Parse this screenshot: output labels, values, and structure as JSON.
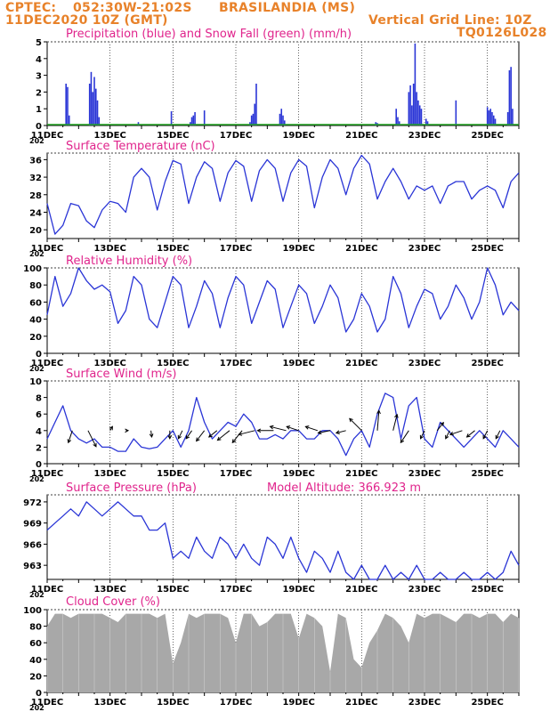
{
  "header": {
    "source": "CPTEC:",
    "coords": "052:30W-21:02S",
    "location": "BRASILANDIA (MS)",
    "run_time": "11DEC2020 10Z (GMT)",
    "grid_note": "Vertical Grid Line: 10Z",
    "code": "TQ0126L028"
  },
  "colors": {
    "header": "#e8822a",
    "title": "#e0248c",
    "line": "#2a35d6",
    "precip": "#2a35d6",
    "snow": "#21a321",
    "cloud": "#a8a8a8",
    "wind_arrow": "#000000"
  },
  "x_axis": {
    "tick_labels": [
      "11DEC",
      "13DEC",
      "15DEC",
      "17DEC",
      "19DEC",
      "21DEC",
      "23DEC",
      "25DEC"
    ],
    "tick_days": [
      0,
      2,
      4,
      6,
      8,
      10,
      12,
      14
    ],
    "range_days": [
      0,
      15
    ],
    "under_label": "202"
  },
  "chart_data": [
    {
      "type": "bar",
      "title": "Precipitation (blue) and Snow Fall (green) (mm/h)",
      "ylim": [
        0,
        5
      ],
      "yticks": [
        0,
        1,
        2,
        3,
        4,
        5
      ],
      "series": [
        {
          "name": "Precipitation",
          "x": [
            0.6,
            0.65,
            0.7,
            1.35,
            1.4,
            1.45,
            1.5,
            1.55,
            1.6,
            1.65,
            2.9,
            3.95,
            4.55,
            4.6,
            4.65,
            4.7,
            5.0,
            6.45,
            6.5,
            6.55,
            6.6,
            6.65,
            7.4,
            7.45,
            7.5,
            7.55,
            10.45,
            10.5,
            11.1,
            11.15,
            11.2,
            11.5,
            11.55,
            11.6,
            11.65,
            11.7,
            11.75,
            11.8,
            11.85,
            11.9,
            12.05,
            12.1,
            13.0,
            14.0,
            14.05,
            14.1,
            14.15,
            14.2,
            14.25,
            14.65,
            14.7,
            14.75,
            14.8
          ],
          "values": [
            2.5,
            2.3,
            0.6,
            2.5,
            3.2,
            2.0,
            2.9,
            2.2,
            1.5,
            0.5,
            0.2,
            0.85,
            0.2,
            0.5,
            0.6,
            0.8,
            0.9,
            0.2,
            0.6,
            0.7,
            1.3,
            2.5,
            0.7,
            1.0,
            0.6,
            0.3,
            0.2,
            0.15,
            1.0,
            0.5,
            0.25,
            2.0,
            2.4,
            1.2,
            2.5,
            4.9,
            2.0,
            1.5,
            1.2,
            1.0,
            0.4,
            0.25,
            1.5,
            1.1,
            0.9,
            1.0,
            0.8,
            0.6,
            0.4,
            0.8,
            3.3,
            3.5,
            1.0
          ]
        },
        {
          "name": "Snow Fall",
          "values": [
            0
          ]
        }
      ]
    },
    {
      "type": "line",
      "title": "Surface Temperature (nC)",
      "ylim": [
        18,
        37.5
      ],
      "yticks": [
        20,
        24,
        28,
        32,
        36
      ],
      "x": [
        0,
        0.25,
        0.5,
        0.75,
        1,
        1.25,
        1.5,
        1.75,
        2,
        2.25,
        2.5,
        2.75,
        3,
        3.25,
        3.5,
        3.75,
        4,
        4.25,
        4.5,
        4.75,
        5,
        5.25,
        5.5,
        5.75,
        6,
        6.25,
        6.5,
        6.75,
        7,
        7.25,
        7.5,
        7.75,
        8,
        8.25,
        8.5,
        8.75,
        9,
        9.25,
        9.5,
        9.75,
        10,
        10.25,
        10.5,
        10.75,
        11,
        11.25,
        11.5,
        11.75,
        12,
        12.25,
        12.5,
        12.75,
        13,
        13.25,
        13.5,
        13.75,
        14,
        14.25,
        14.5,
        14.75,
        15
      ],
      "values": [
        26,
        19,
        21,
        26,
        25.5,
        22,
        20.5,
        24.5,
        26.5,
        26,
        24,
        32,
        34,
        32,
        24.5,
        31,
        35.8,
        35,
        26,
        32,
        35.5,
        34,
        26.5,
        33,
        35.8,
        34.5,
        26.5,
        33.5,
        36,
        34,
        26.5,
        33,
        36,
        34.5,
        25,
        32,
        36,
        34,
        28,
        34,
        37,
        35,
        27,
        31,
        34,
        31,
        27,
        30,
        29,
        30,
        26,
        30,
        31,
        31,
        27,
        29,
        30,
        29,
        25,
        31,
        33
      ]
    },
    {
      "type": "line",
      "title": "Relative Humidity (%)",
      "ylim": [
        0,
        100
      ],
      "yticks": [
        0,
        20,
        40,
        60,
        80,
        100
      ],
      "x": [
        0,
        0.25,
        0.5,
        0.75,
        1,
        1.25,
        1.5,
        1.75,
        2,
        2.25,
        2.5,
        2.75,
        3,
        3.25,
        3.5,
        3.75,
        4,
        4.25,
        4.5,
        4.75,
        5,
        5.25,
        5.5,
        5.75,
        6,
        6.25,
        6.5,
        6.75,
        7,
        7.25,
        7.5,
        7.75,
        8,
        8.25,
        8.5,
        8.75,
        9,
        9.25,
        9.5,
        9.75,
        10,
        10.25,
        10.5,
        10.75,
        11,
        11.25,
        11.5,
        11.75,
        12,
        12.25,
        12.5,
        12.75,
        13,
        13.25,
        13.5,
        13.75,
        14,
        14.25,
        14.5,
        14.75,
        15
      ],
      "values": [
        45,
        90,
        55,
        70,
        100,
        85,
        75,
        80,
        72,
        35,
        50,
        90,
        80,
        40,
        30,
        60,
        90,
        80,
        30,
        55,
        85,
        70,
        30,
        65,
        90,
        80,
        35,
        60,
        85,
        75,
        30,
        55,
        80,
        70,
        35,
        55,
        80,
        65,
        25,
        40,
        70,
        55,
        25,
        40,
        90,
        70,
        30,
        55,
        75,
        70,
        40,
        55,
        80,
        65,
        40,
        60,
        100,
        80,
        45,
        60,
        50
      ]
    },
    {
      "type": "line",
      "title": "Surface Wind (m/s)",
      "ylim": [
        0,
        10
      ],
      "yticks": [
        0,
        2,
        4,
        6,
        8,
        10
      ],
      "x": [
        0,
        0.25,
        0.5,
        0.75,
        1,
        1.25,
        1.5,
        1.75,
        2,
        2.25,
        2.5,
        2.75,
        3,
        3.25,
        3.5,
        3.75,
        4,
        4.25,
        4.5,
        4.75,
        5,
        5.25,
        5.5,
        5.75,
        6,
        6.25,
        6.5,
        6.75,
        7,
        7.25,
        7.5,
        7.75,
        8,
        8.25,
        8.5,
        8.75,
        9,
        9.25,
        9.5,
        9.75,
        10,
        10.25,
        10.5,
        10.75,
        11,
        11.25,
        11.5,
        11.75,
        12,
        12.25,
        12.5,
        12.75,
        13,
        13.25,
        13.5,
        13.75,
        14,
        14.25,
        14.5,
        14.75,
        15
      ],
      "values": [
        3,
        5,
        7,
        4,
        3,
        2.5,
        3,
        2,
        2,
        1.5,
        1.5,
        3,
        2,
        1.8,
        2,
        3,
        4,
        2,
        4,
        8,
        5,
        3,
        4,
        5,
        4.5,
        6,
        5,
        3,
        3,
        3.5,
        3,
        4,
        4,
        3,
        3,
        4,
        4,
        3,
        1,
        3,
        4,
        2,
        6,
        8.5,
        8,
        3,
        7,
        8,
        3,
        2,
        5,
        4,
        3,
        2,
        3,
        4,
        3,
        2,
        4,
        3,
        2
      ],
      "arrows": {
        "x": [
          0.8,
          1.3,
          2.0,
          2.5,
          3.3,
          3.9,
          4.3,
          4.6,
          5.0,
          5.4,
          5.8,
          6.2,
          6.6,
          7.2,
          7.6,
          8.0,
          8.6,
          9.0,
          9.5,
          10.0,
          10.5,
          11.0,
          11.5,
          12.0,
          12.4,
          12.8,
          13.2,
          13.6,
          14.0,
          14.4
        ],
        "u": [
          -0.5,
          1.0,
          0.3,
          0.3,
          0.1,
          0.0,
          -0.5,
          -0.7,
          -1.0,
          -1.0,
          -1.5,
          -1.2,
          -2.0,
          -2.0,
          -2.0,
          -1.5,
          -1.5,
          -1.5,
          -1.2,
          -1.5,
          0.2,
          0.5,
          -1.0,
          -0.5,
          0.8,
          -0.5,
          -1.5,
          -1.0,
          -0.5,
          -0.5
        ],
        "v": [
          1.5,
          2.0,
          -0.5,
          0.0,
          0.8,
          1.0,
          1.0,
          1.0,
          1.3,
          0.8,
          1.2,
          1.5,
          0.5,
          0.0,
          -0.5,
          -0.5,
          -0.5,
          0.3,
          0.3,
          -1.5,
          -2.5,
          -2.0,
          1.5,
          1.0,
          -1.0,
          1.0,
          0.5,
          0.8,
          1.0,
          1.0
        ]
      }
    },
    {
      "type": "line",
      "title": "Surface Pressure (hPa)",
      "annotation": "Model Altitude: 366.923 m",
      "ylim": [
        961,
        973
      ],
      "yticks": [
        963,
        966,
        969,
        972
      ],
      "x": [
        0,
        0.25,
        0.5,
        0.75,
        1,
        1.25,
        1.5,
        1.75,
        2,
        2.25,
        2.5,
        2.75,
        3,
        3.25,
        3.5,
        3.75,
        4,
        4.25,
        4.5,
        4.75,
        5,
        5.25,
        5.5,
        5.75,
        6,
        6.25,
        6.5,
        6.75,
        7,
        7.25,
        7.5,
        7.75,
        8,
        8.25,
        8.5,
        8.75,
        9,
        9.25,
        9.5,
        9.75,
        10,
        10.25,
        10.5,
        10.75,
        11,
        11.25,
        11.5,
        11.75,
        12,
        12.25,
        12.5,
        12.75,
        13,
        13.25,
        13.5,
        13.75,
        14,
        14.25,
        14.5,
        14.75,
        15
      ],
      "values": [
        968,
        969,
        970,
        971,
        970,
        972,
        971,
        970,
        971,
        972,
        971,
        970,
        970,
        968,
        968,
        969,
        964,
        965,
        964,
        967,
        965,
        964,
        967,
        966,
        964,
        966,
        964,
        963,
        967,
        966,
        964,
        967,
        964,
        962,
        965,
        964,
        962,
        965,
        962,
        961,
        963,
        961,
        961,
        963,
        960,
        962,
        961,
        963,
        961,
        960,
        962,
        961,
        961,
        962,
        961,
        960,
        962,
        961,
        962,
        965,
        963
      ]
    },
    {
      "type": "area",
      "title": "Cloud Cover (%)",
      "ylim": [
        0,
        100
      ],
      "yticks": [
        0,
        20,
        40,
        60,
        80,
        100
      ],
      "x": [
        0,
        0.25,
        0.5,
        0.75,
        1,
        1.25,
        1.5,
        1.75,
        2,
        2.25,
        2.5,
        2.75,
        3,
        3.25,
        3.5,
        3.75,
        4,
        4.25,
        4.5,
        4.75,
        5,
        5.25,
        5.5,
        5.75,
        6,
        6.25,
        6.5,
        6.75,
        7,
        7.25,
        7.5,
        7.75,
        8,
        8.25,
        8.5,
        8.75,
        9,
        9.25,
        9.5,
        9.75,
        10,
        10.25,
        10.5,
        10.75,
        11,
        11.25,
        11.5,
        11.75,
        12,
        12.25,
        12.5,
        12.75,
        13,
        13.25,
        13.5,
        13.75,
        14,
        14.25,
        14.5,
        14.75,
        15
      ],
      "values": [
        80,
        95,
        95,
        90,
        95,
        95,
        95,
        95,
        90,
        85,
        95,
        95,
        95,
        95,
        90,
        95,
        35,
        60,
        95,
        90,
        95,
        95,
        95,
        90,
        60,
        95,
        95,
        80,
        85,
        95,
        95,
        95,
        65,
        95,
        90,
        80,
        25,
        95,
        90,
        40,
        30,
        60,
        75,
        95,
        90,
        80,
        60,
        95,
        90,
        95,
        95,
        90,
        85,
        95,
        95,
        90,
        95,
        95,
        85,
        95,
        90
      ]
    }
  ]
}
